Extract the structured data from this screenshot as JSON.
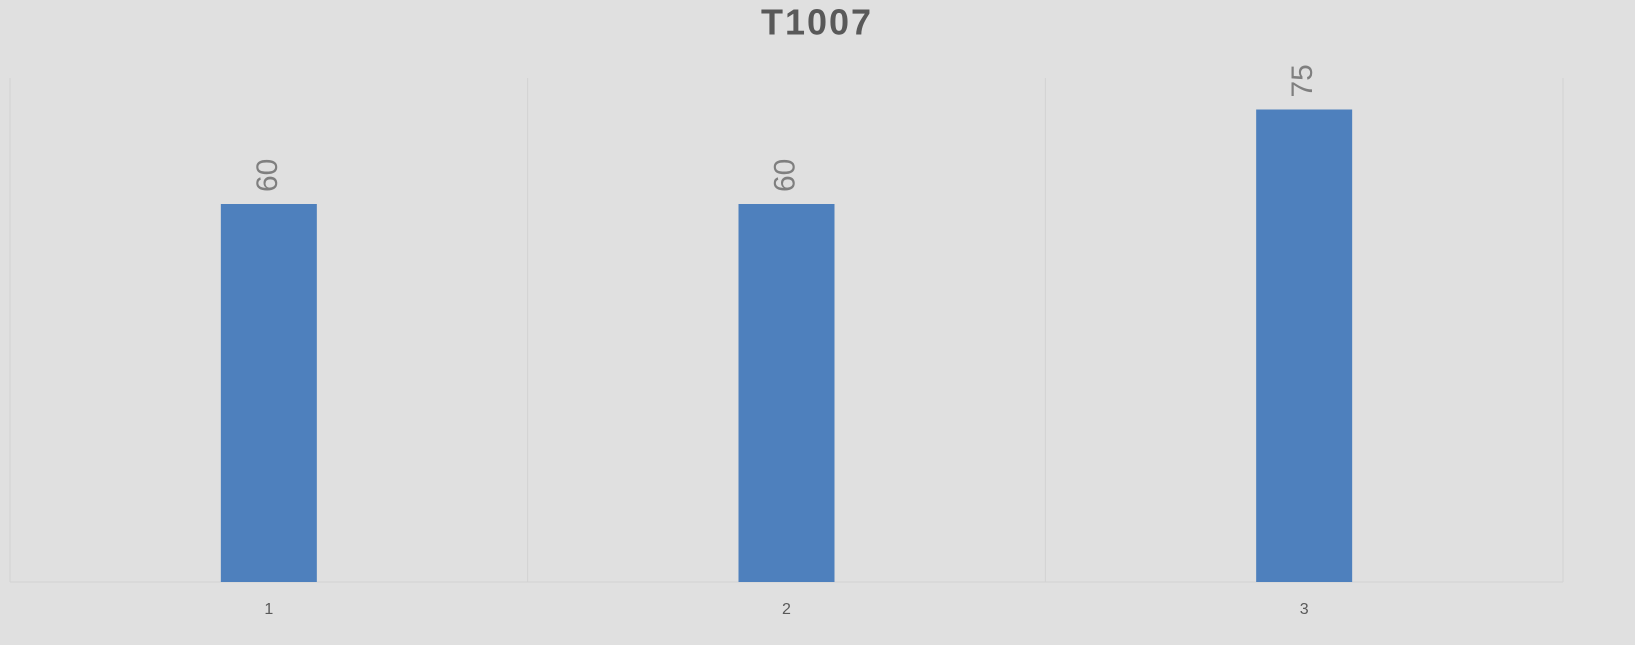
{
  "chart_data": {
    "type": "bar",
    "title": "T1007",
    "categories": [
      "1",
      "2",
      "3"
    ],
    "values": [
      60,
      60,
      75
    ],
    "color": "#4e80bd",
    "ylim": [
      0,
      80
    ]
  }
}
